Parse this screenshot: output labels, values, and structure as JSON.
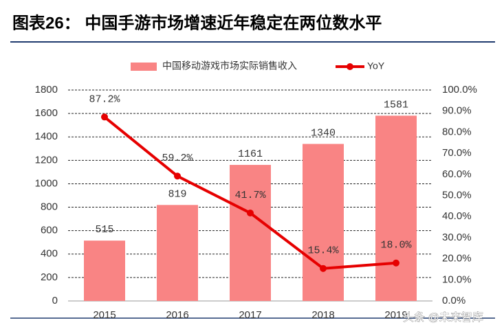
{
  "chart_data": {
    "type": "bar-line",
    "title": "图表26：  中国手游市场增速近年稳定在两位数水平",
    "categories": [
      "2015",
      "2016",
      "2017",
      "2018",
      "2019"
    ],
    "series": [
      {
        "name": "中国移动游戏市场实际销售收入",
        "color": "#f98484",
        "type": "bar",
        "values": [
          515,
          819,
          1161,
          1340,
          1581
        ]
      },
      {
        "name": "YoY",
        "color": "#e60000",
        "type": "line",
        "axis": "y2",
        "values": [
          87.2,
          59.2,
          41.7,
          15.4,
          18.0
        ],
        "value_labels": [
          "87.2%",
          "59.2%",
          "41.7%",
          "15.4%",
          "18.0%"
        ]
      }
    ],
    "ylim": [
      0,
      1800
    ],
    "yticks": [
      0,
      200,
      400,
      600,
      800,
      1000,
      1200,
      1400,
      1600,
      1800
    ],
    "y2lim": [
      0,
      100
    ],
    "y2ticks": [
      {
        "value": 0,
        "label": "0.0%"
      },
      {
        "value": 10,
        "label": "10.0%"
      },
      {
        "value": 20,
        "label": "20.0%"
      },
      {
        "value": 30,
        "label": "30.0%"
      },
      {
        "value": 40,
        "label": "40.0%"
      },
      {
        "value": 50,
        "label": "50.0%"
      },
      {
        "value": 60,
        "label": "60.0%"
      },
      {
        "value": 70,
        "label": "70.0%"
      },
      {
        "value": 80,
        "label": "80.0%"
      },
      {
        "value": 90,
        "label": "90.0%"
      },
      {
        "value": 100,
        "label": "100.0%"
      }
    ],
    "grid": true,
    "legend": "top",
    "watermark": "头条 @未来智库"
  }
}
